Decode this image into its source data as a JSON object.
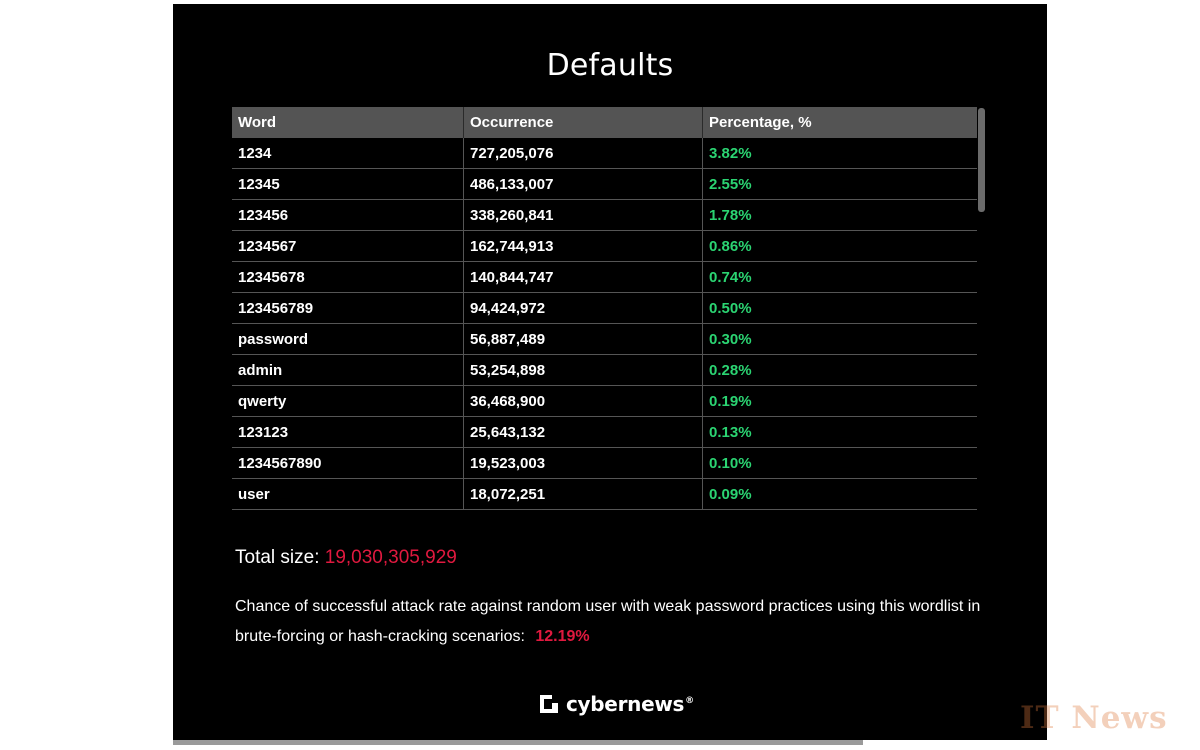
{
  "title": "Defaults",
  "table": {
    "headers": [
      "Word",
      "Occurrence",
      "Percentage, %"
    ],
    "rows": [
      [
        "1234",
        "727,205,076",
        "3.82%"
      ],
      [
        "12345",
        "486,133,007",
        "2.55%"
      ],
      [
        "123456",
        "338,260,841",
        "1.78%"
      ],
      [
        "1234567",
        "162,744,913",
        "0.86%"
      ],
      [
        "12345678",
        "140,844,747",
        "0.74%"
      ],
      [
        "123456789",
        "94,424,972",
        "0.50%"
      ],
      [
        "password",
        "56,887,489",
        "0.30%"
      ],
      [
        "admin",
        "53,254,898",
        "0.28%"
      ],
      [
        "qwerty",
        "36,468,900",
        "0.19%"
      ],
      [
        "123123",
        "25,643,132",
        "0.13%"
      ],
      [
        "1234567890",
        "19,523,003",
        "0.10%"
      ],
      [
        "user",
        "18,072,251",
        "0.09%"
      ]
    ]
  },
  "total": {
    "label": "Total size:",
    "value": "19,030,305,929"
  },
  "chance": {
    "text": "Chance of successful attack rate against random user with weak password practices using this wordlist in brute-forcing or hash-cracking scenarios:",
    "value": "12.19%"
  },
  "brand": {
    "name": "cybernews",
    "reg": "®"
  },
  "watermark": "IT News",
  "colors": {
    "background": "#000000",
    "header_bg": "#545454",
    "percent_green": "#2bd472",
    "accent_red": "#e0193f"
  }
}
